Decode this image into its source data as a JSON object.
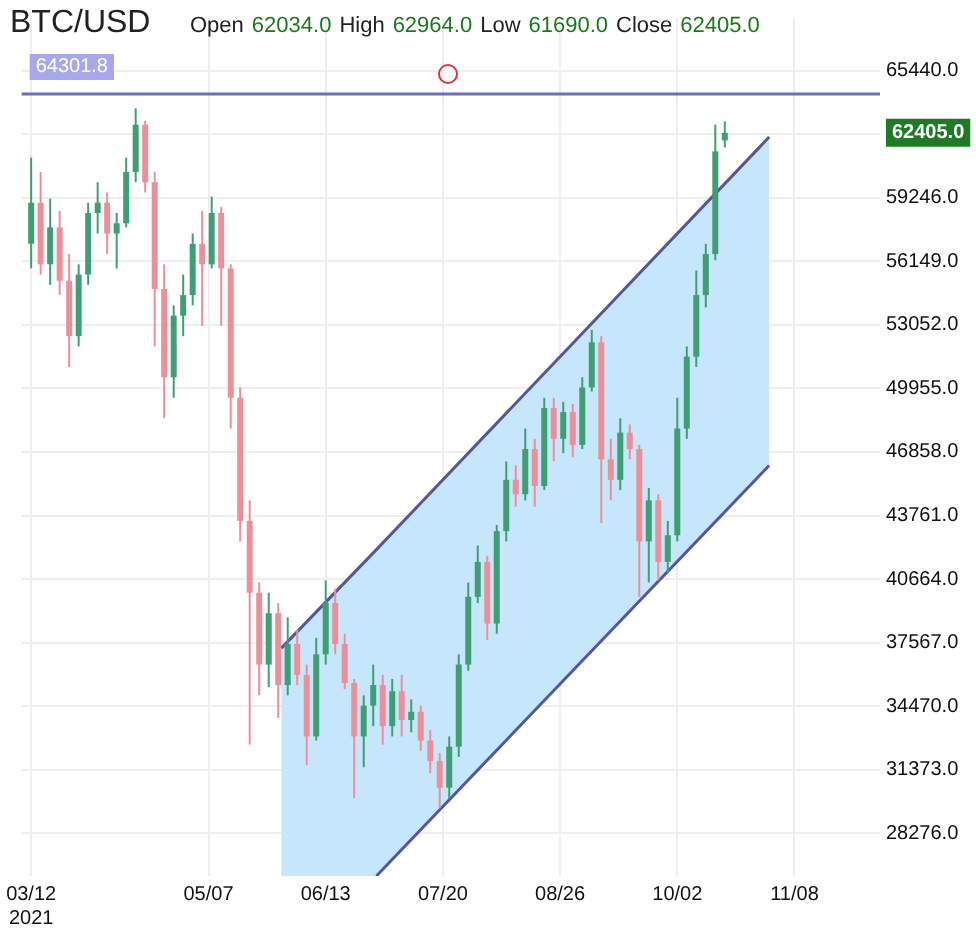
{
  "chart_data": {
    "type": "candlestick",
    "title": "BTC/USD",
    "subtitle": "Open 62034.0 High 62964.0 Low 61690.0 Close 62405.0",
    "x": [
      "2021-03-12",
      "2021-03-15",
      "2021-03-18",
      "2021-03-21",
      "2021-03-24",
      "2021-03-27",
      "2021-03-30",
      "2021-04-02",
      "2021-04-05",
      "2021-04-08",
      "2021-04-11",
      "2021-04-14",
      "2021-04-17",
      "2021-04-20",
      "2021-04-23",
      "2021-04-26",
      "2021-04-29",
      "2021-05-02",
      "2021-05-05",
      "2021-05-08",
      "2021-05-11",
      "2021-05-14",
      "2021-05-17",
      "2021-05-20",
      "2021-05-23",
      "2021-05-26",
      "2021-05-29",
      "2021-06-01",
      "2021-06-04",
      "2021-06-07",
      "2021-06-10",
      "2021-06-13",
      "2021-06-16",
      "2021-06-19",
      "2021-06-22",
      "2021-06-25",
      "2021-06-28",
      "2021-07-01",
      "2021-07-04",
      "2021-07-07",
      "2021-07-10",
      "2021-07-13",
      "2021-07-16",
      "2021-07-19",
      "2021-07-22",
      "2021-07-25",
      "2021-07-28",
      "2021-07-31",
      "2021-08-03",
      "2021-08-06",
      "2021-08-09",
      "2021-08-12",
      "2021-08-15",
      "2021-08-18",
      "2021-08-21",
      "2021-08-24",
      "2021-08-27",
      "2021-08-30",
      "2021-09-02",
      "2021-09-05",
      "2021-09-08",
      "2021-09-11",
      "2021-09-14",
      "2021-09-17",
      "2021-09-20",
      "2021-09-23",
      "2021-09-26",
      "2021-09-29",
      "2021-10-02",
      "2021-10-05",
      "2021-10-08",
      "2021-10-11",
      "2021-10-14",
      "2021-10-17"
    ],
    "ohlc": [
      [
        57000,
        61200,
        55800,
        59000
      ],
      [
        59000,
        60500,
        55500,
        56000
      ],
      [
        56000,
        59200,
        55000,
        57800
      ],
      [
        57800,
        58600,
        54500,
        55200
      ],
      [
        55200,
        56500,
        51000,
        52500
      ],
      [
        52500,
        56000,
        52000,
        55500
      ],
      [
        55500,
        59000,
        55000,
        58500
      ],
      [
        58500,
        60000,
        57500,
        59000
      ],
      [
        59000,
        59500,
        56500,
        57500
      ],
      [
        57500,
        58500,
        55800,
        58000
      ],
      [
        58000,
        61200,
        57800,
        60500
      ],
      [
        60500,
        63600,
        60000,
        62800
      ],
      [
        62800,
        63000,
        59500,
        60000
      ],
      [
        60000,
        60500,
        52000,
        54800
      ],
      [
        54800,
        56000,
        48500,
        50500
      ],
      [
        50500,
        54000,
        49500,
        53500
      ],
      [
        53500,
        55500,
        52500,
        54500
      ],
      [
        54500,
        57500,
        54000,
        57000
      ],
      [
        57000,
        58600,
        53000,
        56000
      ],
      [
        56000,
        59300,
        55800,
        58500
      ],
      [
        58500,
        58800,
        53000,
        55800
      ],
      [
        55800,
        56000,
        48000,
        49500
      ],
      [
        49500,
        50000,
        42500,
        43500
      ],
      [
        43500,
        44500,
        32600,
        40000
      ],
      [
        40000,
        40500,
        35000,
        36500
      ],
      [
        36500,
        40000,
        35400,
        39000
      ],
      [
        39000,
        39500,
        33900,
        35500
      ],
      [
        35500,
        38800,
        35000,
        37500
      ],
      [
        37500,
        38200,
        35500,
        36000
      ],
      [
        36000,
        36500,
        31600,
        33000
      ],
      [
        33000,
        37800,
        32800,
        37000
      ],
      [
        37000,
        40600,
        36500,
        39500
      ],
      [
        39500,
        40200,
        37000,
        37500
      ],
      [
        37500,
        38000,
        35300,
        35600
      ],
      [
        35600,
        35800,
        30000,
        33000
      ],
      [
        33000,
        35000,
        31500,
        34500
      ],
      [
        34500,
        36500,
        33500,
        35500
      ],
      [
        35500,
        36000,
        32600,
        33500
      ],
      [
        33500,
        35800,
        33000,
        35200
      ],
      [
        35200,
        36000,
        33000,
        33800
      ],
      [
        33800,
        34800,
        33200,
        34200
      ],
      [
        34200,
        34500,
        32300,
        32800
      ],
      [
        32800,
        33300,
        31200,
        31800
      ],
      [
        31800,
        32200,
        29500,
        30500
      ],
      [
        30500,
        33000,
        30000,
        32500
      ],
      [
        32500,
        37000,
        32000,
        36500
      ],
      [
        36500,
        40500,
        36200,
        39800
      ],
      [
        39800,
        42300,
        39500,
        41500
      ],
      [
        41500,
        41800,
        37700,
        38500
      ],
      [
        38500,
        43300,
        38000,
        43000
      ],
      [
        43000,
        46400,
        42500,
        45500
      ],
      [
        45500,
        46200,
        44200,
        44800
      ],
      [
        44800,
        48000,
        44500,
        47000
      ],
      [
        47000,
        47500,
        44200,
        45200
      ],
      [
        45200,
        49500,
        45000,
        49000
      ],
      [
        49000,
        49500,
        46400,
        47500
      ],
      [
        47500,
        49300,
        46800,
        48800
      ],
      [
        48800,
        49200,
        46600,
        47200
      ],
      [
        47200,
        50500,
        47000,
        50000
      ],
      [
        50000,
        52800,
        49800,
        52200
      ],
      [
        52200,
        52500,
        43400,
        46500
      ],
      [
        46500,
        47500,
        44500,
        45500
      ],
      [
        45500,
        48500,
        45000,
        47800
      ],
      [
        47800,
        48200,
        46500,
        47000
      ],
      [
        47000,
        47200,
        39800,
        42500
      ],
      [
        42500,
        45100,
        40500,
        44500
      ],
      [
        44500,
        44800,
        40600,
        41500
      ],
      [
        41500,
        43500,
        41000,
        42800
      ],
      [
        42800,
        49500,
        42500,
        48000
      ],
      [
        48000,
        52000,
        47500,
        51500
      ],
      [
        51500,
        55700,
        51000,
        54500
      ],
      [
        54500,
        57000,
        53900,
        56500
      ],
      [
        56500,
        62800,
        56200,
        61500
      ],
      [
        62034,
        62964,
        61690,
        62405
      ]
    ],
    "colors": [
      "#3f9e73",
      "#eb8f98",
      "#3f9e73",
      "#eb8f98",
      "#eb8f98",
      "#3f9e73",
      "#3f9e73",
      "#3f9e73",
      "#eb8f98",
      "#3f9e73",
      "#3f9e73",
      "#3f9e73",
      "#eb8f98",
      "#eb8f98",
      "#eb8f98",
      "#3f9e73",
      "#3f9e73",
      "#3f9e73",
      "#eb8f98",
      "#3f9e73",
      "#eb8f98",
      "#eb8f98",
      "#eb8f98",
      "#eb8f98",
      "#eb8f98",
      "#3f9e73",
      "#eb8f98",
      "#3f9e73",
      "#eb8f98",
      "#eb8f98",
      "#3f9e73",
      "#3f9e73",
      "#eb8f98",
      "#eb8f98",
      "#eb8f98",
      "#3f9e73",
      "#3f9e73",
      "#eb8f98",
      "#3f9e73",
      "#eb8f98",
      "#3f9e73",
      "#eb8f98",
      "#eb8f98",
      "#eb8f98",
      "#3f9e73",
      "#3f9e73",
      "#3f9e73",
      "#3f9e73",
      "#eb8f98",
      "#3f9e73",
      "#3f9e73",
      "#eb8f98",
      "#3f9e73",
      "#eb8f98",
      "#3f9e73",
      "#eb8f98",
      "#3f9e73",
      "#eb8f98",
      "#3f9e73",
      "#3f9e73",
      "#eb8f98",
      "#eb8f98",
      "#3f9e73",
      "#eb8f98",
      "#eb8f98",
      "#3f9e73",
      "#eb8f98",
      "#3f9e73",
      "#3f9e73",
      "#3f9e73",
      "#3f9e73",
      "#3f9e73",
      "#3f9e73",
      "#3f9e73"
    ],
    "series": [
      {
        "type": "line",
        "x": [
          "2021-05-30",
          "2021-06-29",
          "2021-10-31"
        ],
        "values": [
          37300,
          42100,
          62200
        ],
        "lower": [
          26200,
          26200,
          46200
        ],
        "upper": [
          37300,
          42100,
          62200
        ],
        "color": "#55579a"
      },
      {
        "type": "line",
        "x": [
          "2021-06-29",
          "2021-10-31"
        ],
        "values": [
          26200,
          46200
        ],
        "color": "#55579a"
      }
    ],
    "ref_lines": [
      {
        "axis": "y",
        "value": 64301.8,
        "label": "64301.8",
        "color": "#6d6dc4"
      }
    ],
    "annotations": [
      "62405.0"
    ],
    "xlim": [
      "2021-03-09",
      "2021-12-05"
    ],
    "xticks": [
      {
        "value": "2021-03-12",
        "label": "03/12\n2021"
      },
      {
        "value": "2021-05-07",
        "label": "05/07"
      },
      {
        "value": "2021-06-13",
        "label": "06/13"
      },
      {
        "value": "2021-07-20",
        "label": "07/20"
      },
      {
        "value": "2021-08-26",
        "label": "08/26"
      },
      {
        "value": "2021-10-02",
        "label": "10/02"
      },
      {
        "value": "2021-11-08",
        "label": "11/08"
      }
    ],
    "ylim": [
      26200,
      68000
    ],
    "yticks": [
      {
        "value": 28276,
        "label": "28276.0"
      },
      {
        "value": 31373,
        "label": "31373.0"
      },
      {
        "value": 34470,
        "label": "34470.0"
      },
      {
        "value": 37567,
        "label": "37567.0"
      },
      {
        "value": 40664,
        "label": "40664.0"
      },
      {
        "value": 43761,
        "label": "43761.0"
      },
      {
        "value": 46858,
        "label": "46858.0"
      },
      {
        "value": 49955,
        "label": "49955.0"
      },
      {
        "value": 53052,
        "label": "53052.0"
      },
      {
        "value": 56149,
        "label": "56149.0"
      },
      {
        "value": 59246,
        "label": "59246.0"
      },
      {
        "value": 62343,
        "label": null
      },
      {
        "value": 65440,
        "label": "65440.0"
      }
    ],
    "grid": true
  }
}
